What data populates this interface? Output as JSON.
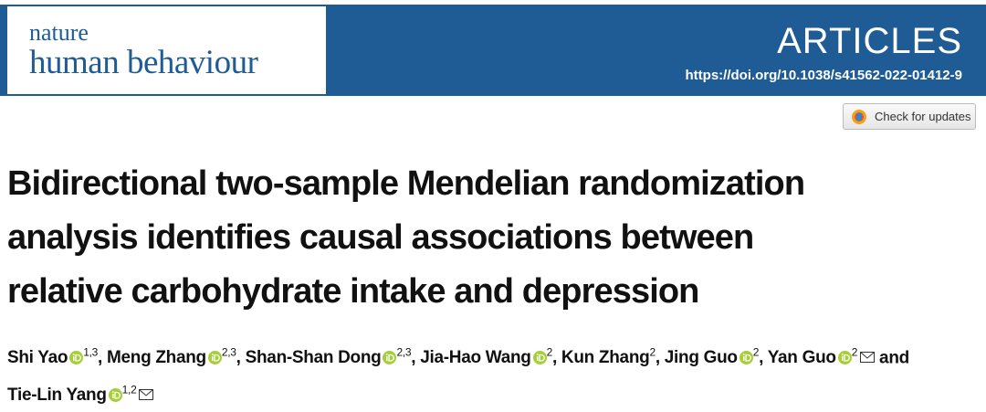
{
  "header": {
    "journal_top": "nature",
    "journal_name": "human behaviour",
    "article_type": "ARTICLES",
    "doi": "https://doi.org/10.1038/s41562-022-01412-9"
  },
  "check_updates": "Check for updates",
  "title_lines": [
    "Bidirectional two-sample Mendelian randomization",
    "analysis identifies causal associations between",
    "relative carbohydrate intake and depression"
  ],
  "authors": {
    "separator": ",",
    "conjunction": "and",
    "list": [
      {
        "name": "Shi Yao",
        "affiliations": "1,3",
        "orcid": true,
        "corresponding": false
      },
      {
        "name": "Meng Zhang",
        "affiliations": "2,3",
        "orcid": true,
        "corresponding": false
      },
      {
        "name": "Shan-Shan Dong",
        "affiliations": "2,3",
        "orcid": true,
        "corresponding": false
      },
      {
        "name": "Jia-Hao Wang",
        "affiliations": "2",
        "orcid": true,
        "corresponding": false
      },
      {
        "name": "Kun Zhang",
        "affiliations": "2",
        "orcid": false,
        "corresponding": false
      },
      {
        "name": "Jing Guo",
        "affiliations": "2",
        "orcid": true,
        "corresponding": false
      },
      {
        "name": "Yan Guo",
        "affiliations": "2",
        "orcid": true,
        "corresponding": true
      },
      {
        "name": "Tie-Lin Yang",
        "affiliations": "1,2",
        "orcid": true,
        "corresponding": true
      }
    ]
  }
}
